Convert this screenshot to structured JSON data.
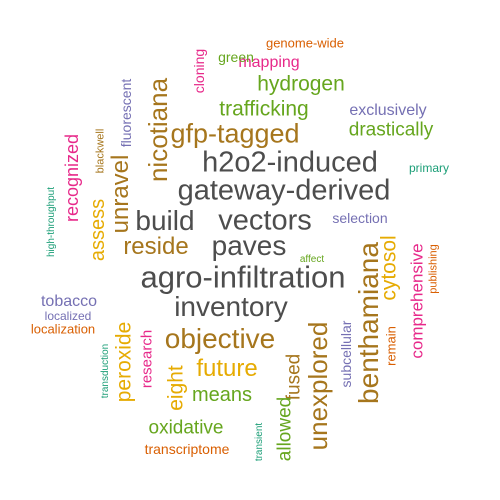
{
  "palette": {
    "charcoal": "#4d4d4d",
    "brown": "#a6761d",
    "gold": "#e6ab02",
    "green": "#66a61e",
    "magenta": "#e7298a",
    "purple": "#7570b3",
    "orange": "#d95f02",
    "teal": "#1b9e77"
  },
  "words": [
    {
      "id": "agro-infiltration",
      "text": "agro-infiltration"
    },
    {
      "id": "gateway-derived",
      "text": "gateway-derived"
    },
    {
      "id": "h2o2-induced",
      "text": "h2o2-induced"
    },
    {
      "id": "vectors",
      "text": "vectors"
    },
    {
      "id": "inventory",
      "text": "inventory"
    },
    {
      "id": "paves",
      "text": "paves"
    },
    {
      "id": "build",
      "text": "build"
    },
    {
      "id": "objective",
      "text": "objective"
    },
    {
      "id": "gfp-tagged",
      "text": "gfp-tagged"
    },
    {
      "id": "benthamiana",
      "text": "benthamiana"
    },
    {
      "id": "reside",
      "text": "reside"
    },
    {
      "id": "nicotiana",
      "text": "nicotiana"
    },
    {
      "id": "unexplored",
      "text": "unexplored"
    },
    {
      "id": "future",
      "text": "future"
    },
    {
      "id": "unravel",
      "text": "unravel"
    },
    {
      "id": "cytosol",
      "text": "cytosol"
    },
    {
      "id": "eight",
      "text": "eight"
    },
    {
      "id": "peroxide",
      "text": "peroxide"
    },
    {
      "id": "trafficking",
      "text": "trafficking"
    },
    {
      "id": "hydrogen",
      "text": "hydrogen"
    },
    {
      "id": "drastically",
      "text": "drastically"
    },
    {
      "id": "means",
      "text": "means"
    },
    {
      "id": "oxidative",
      "text": "oxidative"
    },
    {
      "id": "assess",
      "text": "assess"
    },
    {
      "id": "fused",
      "text": "fused"
    },
    {
      "id": "allowed",
      "text": "allowed"
    },
    {
      "id": "comprehensive",
      "text": "comprehensive"
    },
    {
      "id": "research",
      "text": "research"
    },
    {
      "id": "recognized",
      "text": "recognized"
    },
    {
      "id": "mapping",
      "text": "mapping"
    },
    {
      "id": "exclusively",
      "text": "exclusively"
    },
    {
      "id": "tobacco",
      "text": "tobacco"
    },
    {
      "id": "selection",
      "text": "selection"
    },
    {
      "id": "subcellular",
      "text": "subcellular"
    },
    {
      "id": "fluorescent",
      "text": "fluorescent"
    },
    {
      "id": "green",
      "text": "green"
    },
    {
      "id": "cloning",
      "text": "cloning"
    },
    {
      "id": "remain",
      "text": "remain"
    },
    {
      "id": "transcriptome",
      "text": "transcriptome"
    },
    {
      "id": "localization",
      "text": "localization"
    },
    {
      "id": "genome-wide",
      "text": "genome-wide"
    },
    {
      "id": "blackwell",
      "text": "blackwell"
    },
    {
      "id": "publishing",
      "text": "publishing"
    },
    {
      "id": "localized",
      "text": "localized"
    },
    {
      "id": "primary",
      "text": "primary"
    },
    {
      "id": "high-throughput",
      "text": "high-throughput"
    },
    {
      "id": "transduction",
      "text": "transduction"
    },
    {
      "id": "transient",
      "text": "transient"
    },
    {
      "id": "affect",
      "text": "affect"
    }
  ]
}
